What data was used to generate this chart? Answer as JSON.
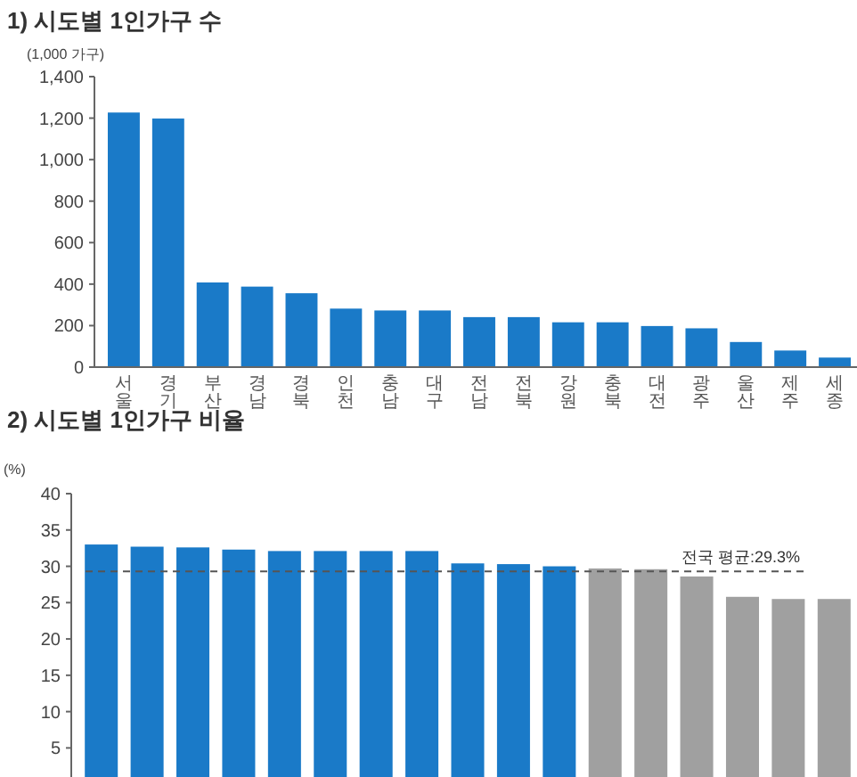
{
  "chart_data": [
    {
      "type": "bar",
      "title": "1) 시도별 1인가구 수",
      "ylabel": "(1,000 가구)",
      "categories": [
        "서울",
        "경기",
        "부산",
        "경남",
        "경북",
        "인천",
        "충남",
        "대구",
        "전남",
        "전북",
        "강원",
        "충북",
        "대전",
        "광주",
        "울산",
        "제주",
        "세종"
      ],
      "values": [
        1227,
        1198,
        408,
        388,
        356,
        282,
        273,
        273,
        241,
        241,
        216,
        216,
        198,
        187,
        121,
        80,
        46
      ],
      "color": "#1a7ac8",
      "ylim": [
        0,
        1400
      ],
      "yticks": [
        0,
        {
          "value": 200,
          "label": "200"
        },
        {
          "value": 400,
          "label": "400"
        },
        {
          "value": 600,
          "label": "600"
        },
        {
          "value": 800,
          "label": "800"
        },
        {
          "value": 1000,
          "label": "1,000"
        },
        {
          "value": 1200,
          "label": "1,200"
        },
        {
          "value": 1400,
          "label": "1,400"
        }
      ]
    },
    {
      "type": "bar",
      "title": "2) 시도별 1인가구 비율",
      "ylabel": "(%)",
      "categories": [
        null,
        null,
        null,
        null,
        null,
        null,
        null,
        null,
        null,
        null,
        null,
        null,
        null,
        null,
        null,
        null,
        null
      ],
      "values": [
        33.0,
        32.7,
        32.6,
        32.3,
        32.1,
        32.1,
        32.1,
        32.1,
        30.4,
        30.3,
        30.0,
        29.7,
        29.6,
        28.6,
        25.8,
        25.5,
        25.5
      ],
      "colors": [
        "#1a7ac8",
        "#1a7ac8",
        "#1a7ac8",
        "#1a7ac8",
        "#1a7ac8",
        "#1a7ac8",
        "#1a7ac8",
        "#1a7ac8",
        "#1a7ac8",
        "#1a7ac8",
        "#1a7ac8",
        "#a0a0a0",
        "#a0a0a0",
        "#a0a0a0",
        "#a0a0a0",
        "#a0a0a0",
        "#a0a0a0"
      ],
      "ylim": [
        1,
        40
      ],
      "yticks": [
        5,
        10,
        15,
        20,
        25,
        30,
        35,
        40
      ],
      "ref_lines": [
        {
          "axis": "y",
          "value": 29.3,
          "label": "전국 평균:29.3%",
          "color": "#555555",
          "line_style": "dashed"
        }
      ]
    }
  ]
}
